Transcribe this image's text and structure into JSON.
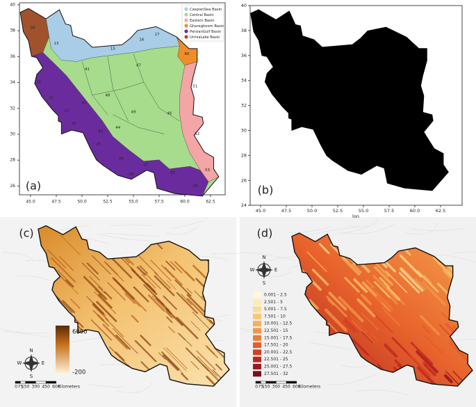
{
  "panels": [
    {
      "label": "(a)",
      "legend": [
        {
          "text": "CaspianSea Basin",
          "color": "#a9cde6"
        },
        {
          "text": "Central Basin",
          "color": "#a6dc8c"
        },
        {
          "text": "Eastern Basin",
          "color": "#f4a5a5"
        },
        {
          "text": "Ghareghoom Basin",
          "color": "#f28c28"
        },
        {
          "text": "PersianGulf Basin",
          "color": "#6a2c9c"
        },
        {
          "text": "UrmiaLake Basin",
          "color": "#a0522d"
        }
      ],
      "basins": [
        "30",
        "13",
        "15",
        "16",
        "17",
        "60",
        "41",
        "47",
        "21",
        "22",
        "42",
        "48",
        "23",
        "51",
        "49",
        "24",
        "43",
        "44",
        "46",
        "52",
        "25",
        "26",
        "27",
        "45",
        "28",
        "53",
        "29"
      ],
      "xticks": [
        "45.0",
        "47.5",
        "50.0",
        "52.5",
        "55.0",
        "57.5",
        "60.0",
        "62.5"
      ],
      "yticks": [
        "40",
        "38",
        "36",
        "34",
        "32",
        "30",
        "28",
        "26"
      ]
    },
    {
      "label": "(b)",
      "xlabel": "lon",
      "xticks": [
        "45.0",
        "47.5",
        "50.0",
        "52.5",
        "55.0",
        "57.5",
        "60.0",
        "62.5"
      ],
      "yticks": [
        "40",
        "38",
        "36",
        "34",
        "32",
        "30",
        "28",
        "26",
        "24"
      ]
    },
    {
      "label": "(c)",
      "colorbar": {
        "max": "6000",
        "min": "-200"
      },
      "compass": {
        "n": "N",
        "s": "S",
        "e": "E",
        "w": "W"
      },
      "scale": {
        "ticks": [
          "0",
          "75",
          "150",
          "300",
          "450",
          "600"
        ],
        "unit": "Kilometers"
      }
    },
    {
      "label": "(d)",
      "legend": [
        {
          "text": "0.001 - 2.5",
          "color": "#fff8d8"
        },
        {
          "text": "2.501 - 5",
          "color": "#fdebb5"
        },
        {
          "text": "5.001 - 7.5",
          "color": "#fbdc92"
        },
        {
          "text": "7.501 - 10",
          "color": "#f8c872"
        },
        {
          "text": "10.001 - 12.5",
          "color": "#f5b15a"
        },
        {
          "text": "12.501 - 15",
          "color": "#f29746"
        },
        {
          "text": "15.001 - 17.5",
          "color": "#ee7b36"
        },
        {
          "text": "17.501 - 20",
          "color": "#e65c2a"
        },
        {
          "text": "20.001 - 22.5",
          "color": "#d63d22"
        },
        {
          "text": "22.501 - 25",
          "color": "#bf2420"
        },
        {
          "text": "25.001 - 27.5",
          "color": "#a0161e"
        },
        {
          "text": "27.501 - 32",
          "color": "#7e0c1a"
        }
      ],
      "compass": {
        "n": "N",
        "s": "S",
        "e": "E",
        "w": "W"
      },
      "scale": {
        "ticks": [
          "0",
          "75",
          "150",
          "300",
          "450",
          "600"
        ],
        "unit": "Kilometers"
      }
    }
  ]
}
